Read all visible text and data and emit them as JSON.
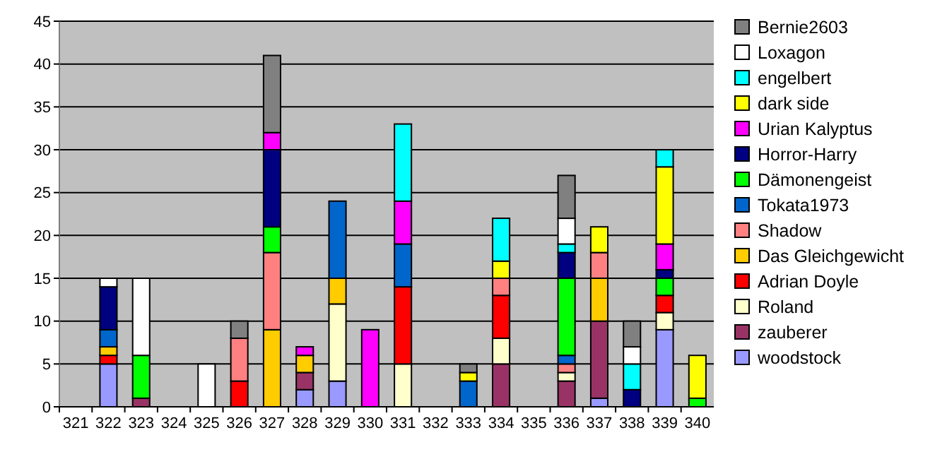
{
  "chart_data": {
    "type": "bar",
    "stacked": true,
    "categories": [
      "321",
      "322",
      "323",
      "324",
      "325",
      "326",
      "327",
      "328",
      "329",
      "330",
      "331",
      "332",
      "333",
      "334",
      "335",
      "336",
      "337",
      "338",
      "339",
      "340"
    ],
    "series": [
      {
        "name": "woodstock",
        "color": "#9999ff",
        "values": [
          null,
          5,
          null,
          null,
          null,
          null,
          null,
          2,
          3,
          null,
          null,
          null,
          null,
          null,
          null,
          null,
          1,
          null,
          9,
          null
        ]
      },
      {
        "name": "zauberer",
        "color": "#993366",
        "values": [
          null,
          null,
          1,
          null,
          null,
          null,
          null,
          2,
          null,
          null,
          null,
          null,
          null,
          5,
          null,
          3,
          9,
          null,
          null,
          null
        ]
      },
      {
        "name": "Roland",
        "color": "#ffffcc",
        "values": [
          null,
          null,
          null,
          null,
          null,
          null,
          null,
          null,
          9,
          null,
          5,
          null,
          null,
          3,
          null,
          1,
          null,
          null,
          2,
          null
        ]
      },
      {
        "name": "Adrian Doyle",
        "color": "#ff0000",
        "values": [
          null,
          1,
          null,
          null,
          null,
          3,
          null,
          null,
          null,
          null,
          9,
          null,
          null,
          5,
          null,
          null,
          null,
          null,
          2,
          null
        ]
      },
      {
        "name": "Das Gleichgewicht",
        "color": "#ffcc00",
        "values": [
          null,
          1,
          null,
          null,
          null,
          null,
          9,
          2,
          3,
          null,
          null,
          null,
          null,
          null,
          null,
          null,
          5,
          null,
          null,
          null
        ]
      },
      {
        "name": "Shadow",
        "color": "#ff8080",
        "values": [
          null,
          null,
          null,
          null,
          null,
          5,
          9,
          null,
          null,
          null,
          null,
          null,
          null,
          2,
          null,
          1,
          3,
          null,
          null,
          null
        ]
      },
      {
        "name": "Tokata1973",
        "color": "#0066cc",
        "values": [
          null,
          2,
          null,
          null,
          null,
          null,
          null,
          null,
          9,
          null,
          5,
          null,
          3,
          null,
          null,
          1,
          null,
          null,
          null,
          null
        ]
      },
      {
        "name": "Dämonengeist",
        "color": "#00ff00",
        "values": [
          null,
          null,
          5,
          null,
          null,
          null,
          3,
          null,
          null,
          null,
          null,
          null,
          null,
          null,
          null,
          9,
          null,
          null,
          2,
          1
        ]
      },
      {
        "name": "Horror-Harry",
        "color": "#000080",
        "values": [
          null,
          5,
          null,
          null,
          null,
          null,
          9,
          null,
          null,
          null,
          null,
          null,
          null,
          null,
          null,
          3,
          null,
          2,
          1,
          null
        ]
      },
      {
        "name": "Urian Kalyptus",
        "color": "#ff00ff",
        "values": [
          null,
          null,
          null,
          null,
          null,
          null,
          2,
          1,
          null,
          9,
          5,
          null,
          null,
          null,
          null,
          null,
          null,
          null,
          3,
          null
        ]
      },
      {
        "name": "dark side",
        "color": "#ffff00",
        "values": [
          null,
          null,
          null,
          null,
          null,
          null,
          null,
          null,
          null,
          null,
          null,
          null,
          1,
          2,
          null,
          null,
          3,
          null,
          9,
          5
        ]
      },
      {
        "name": "engelbert",
        "color": "#00ffff",
        "values": [
          null,
          null,
          null,
          null,
          null,
          null,
          null,
          null,
          null,
          null,
          9,
          null,
          null,
          5,
          null,
          1,
          null,
          3,
          2,
          null
        ]
      },
      {
        "name": "Loxagon",
        "color": "#ffffff",
        "values": [
          null,
          1,
          9,
          null,
          5,
          null,
          null,
          null,
          null,
          null,
          null,
          null,
          null,
          null,
          null,
          3,
          null,
          2,
          null,
          null
        ]
      },
      {
        "name": "Bernie2603",
        "color": "#808080",
        "values": [
          null,
          null,
          null,
          null,
          null,
          2,
          9,
          null,
          null,
          null,
          null,
          null,
          1,
          null,
          null,
          5,
          null,
          3,
          null,
          null
        ]
      }
    ],
    "ylim": [
      0,
      45
    ],
    "yticks": [
      0,
      5,
      10,
      15,
      20,
      25,
      30,
      35,
      40,
      45
    ],
    "grid": "y",
    "legend": "right"
  }
}
